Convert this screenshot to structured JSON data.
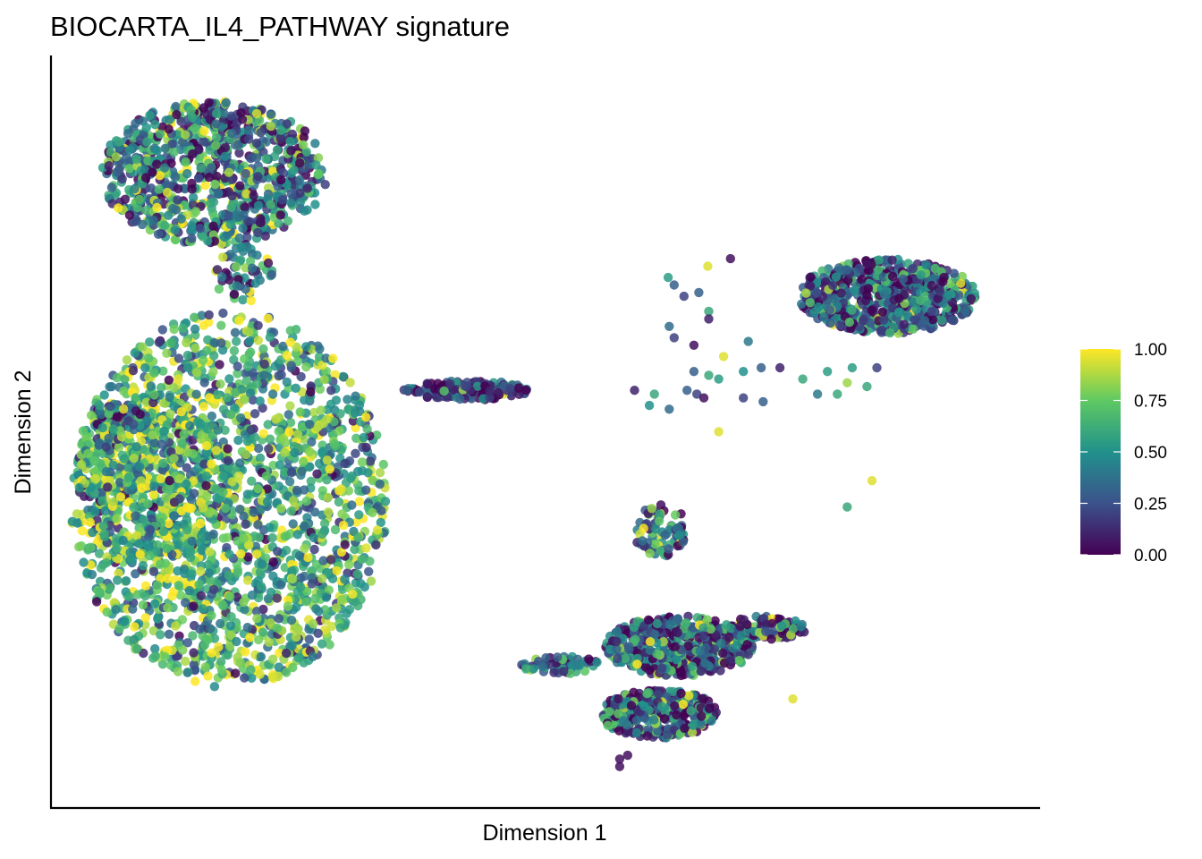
{
  "chart_data": {
    "type": "scatter",
    "title": "BIOCARTA_IL4_PATHWAY signature",
    "xlabel": "Dimension 1",
    "ylabel": "Dimension 2",
    "xlim": [
      0,
      100
    ],
    "ylim": [
      0,
      100
    ],
    "grid": false,
    "x_ticks_shown": false,
    "y_ticks_shown": false,
    "color_scale": {
      "name": "viridis",
      "range": [
        0,
        1
      ],
      "ticks": [
        {
          "value": 0.0,
          "label": "0.00"
        },
        {
          "value": 0.25,
          "label": "0.25"
        },
        {
          "value": 0.5,
          "label": "0.50"
        },
        {
          "value": 0.75,
          "label": "0.75"
        },
        {
          "value": 1.0,
          "label": "1.00"
        }
      ],
      "stops": [
        "#440154",
        "#3b528b",
        "#21918c",
        "#5ec962",
        "#fde725"
      ],
      "legend_placement": "right"
    },
    "clusters": [
      {
        "cx": 16.4,
        "cy": 84.4,
        "rx": 11.5,
        "ry": 9.5,
        "n": 900,
        "mean": 0.4,
        "spread": 0.32
      },
      {
        "cx": 19.5,
        "cy": 71.0,
        "rx": 3.0,
        "ry": 4.0,
        "n": 60,
        "mean": 0.45,
        "spread": 0.3
      },
      {
        "cx": 18.0,
        "cy": 41.0,
        "rx": 16.0,
        "ry": 25.0,
        "n": 1900,
        "mean": 0.62,
        "spread": 0.26
      },
      {
        "cx": 10.5,
        "cy": 44.0,
        "rx": 8.0,
        "ry": 11.0,
        "n": 500,
        "mean": 0.62,
        "spread": 0.26
      },
      {
        "cx": 7.0,
        "cy": 52.0,
        "rx": 3.2,
        "ry": 2.0,
        "n": 60,
        "mean": 0.4,
        "spread": 0.3
      },
      {
        "cx": 42.0,
        "cy": 55.5,
        "rx": 6.5,
        "ry": 1.3,
        "n": 180,
        "mean": 0.15,
        "spread": 0.2
      },
      {
        "cx": 84.5,
        "cy": 68.0,
        "rx": 9.0,
        "ry": 5.0,
        "n": 650,
        "mean": 0.25,
        "spread": 0.28
      },
      {
        "cx": 61.5,
        "cy": 37.0,
        "rx": 2.7,
        "ry": 3.6,
        "n": 80,
        "mean": 0.3,
        "spread": 0.3
      },
      {
        "cx": 63.5,
        "cy": 21.5,
        "rx": 7.5,
        "ry": 4.0,
        "n": 500,
        "mean": 0.3,
        "spread": 0.28
      },
      {
        "cx": 61.5,
        "cy": 12.5,
        "rx": 6.0,
        "ry": 3.2,
        "n": 350,
        "mean": 0.3,
        "spread": 0.28
      },
      {
        "cx": 72.5,
        "cy": 24.0,
        "rx": 4.0,
        "ry": 1.6,
        "n": 90,
        "mean": 0.25,
        "spread": 0.28
      },
      {
        "cx": 51.5,
        "cy": 19.0,
        "rx": 4.0,
        "ry": 1.2,
        "n": 60,
        "mean": 0.3,
        "spread": 0.3
      }
    ],
    "sparse_points": [
      [
        68.7,
        73.0,
        0.05
      ],
      [
        66.4,
        72.0,
        0.95
      ],
      [
        62.4,
        70.5,
        0.55
      ],
      [
        63.0,
        69.5,
        0.3
      ],
      [
        65.5,
        68.5,
        0.3
      ],
      [
        64.0,
        68.0,
        0.2
      ],
      [
        66.5,
        66.0,
        0.6
      ],
      [
        66.5,
        65.0,
        0.1
      ],
      [
        62.5,
        64.0,
        0.35
      ],
      [
        63.0,
        62.5,
        0.2
      ],
      [
        70.5,
        62.0,
        0.4
      ],
      [
        65.0,
        61.5,
        0.05
      ],
      [
        68.0,
        60.0,
        0.95
      ],
      [
        65.0,
        58.0,
        0.3
      ],
      [
        66.5,
        57.5,
        0.6
      ],
      [
        67.5,
        57.0,
        0.55
      ],
      [
        70.0,
        58.0,
        0.5
      ],
      [
        71.8,
        58.5,
        0.3
      ],
      [
        73.7,
        58.5,
        0.1
      ],
      [
        76.0,
        57.0,
        0.6
      ],
      [
        78.5,
        58.0,
        0.55
      ],
      [
        81.0,
        58.5,
        0.55
      ],
      [
        83.5,
        58.5,
        0.2
      ],
      [
        82.5,
        56.0,
        0.6
      ],
      [
        80.5,
        56.5,
        0.85
      ],
      [
        79.5,
        55.0,
        0.6
      ],
      [
        77.5,
        55.0,
        0.4
      ],
      [
        72.0,
        54.0,
        0.3
      ],
      [
        70.0,
        54.5,
        0.2
      ],
      [
        65.3,
        55.0,
        0.2
      ],
      [
        64.3,
        55.5,
        0.3
      ],
      [
        66.0,
        54.5,
        0.05
      ],
      [
        59.0,
        55.5,
        0.1
      ],
      [
        61.0,
        55.0,
        0.6
      ],
      [
        60.5,
        53.5,
        0.5
      ],
      [
        62.5,
        53.0,
        0.35
      ],
      [
        67.5,
        50.0,
        0.95
      ],
      [
        83.0,
        43.5,
        0.95
      ],
      [
        80.5,
        40.0,
        0.6
      ],
      [
        75.0,
        14.5,
        0.95
      ],
      [
        60.0,
        13.5,
        0.5
      ],
      [
        57.5,
        6.5,
        0.05
      ],
      [
        58.3,
        7.0,
        0.05
      ],
      [
        57.5,
        5.5,
        0.05
      ]
    ]
  }
}
